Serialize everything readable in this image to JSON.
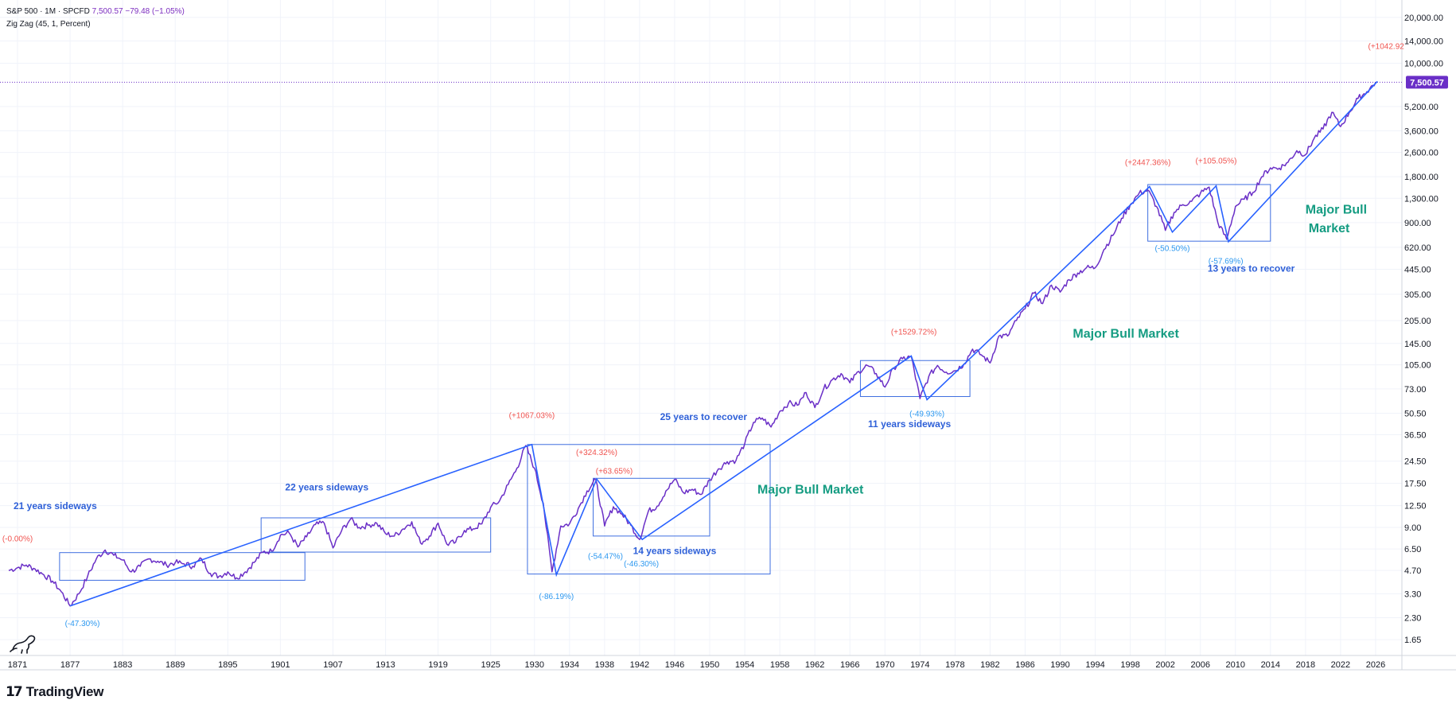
{
  "header": {
    "symbol": "S&P 500 · 1M · SPCFD",
    "last": "7,500.57",
    "change": "−79.48 (−1.05%)",
    "indicator": "Zig Zag (45, 1, Percent)"
  },
  "footer": {
    "brand": "TradingView"
  },
  "colors": {
    "price_line": "#6a2fc7",
    "zigzag": "#2962ff",
    "box": "#3f6fe0",
    "positive": "#f0534f",
    "negative": "#2c98f0",
    "annotation_blue": "#2e60d8",
    "annotation_green": "#159c82",
    "grid": "#f0f3fa",
    "axis_text": "#131722",
    "price_tag_bg": "#6a2fc7"
  },
  "chart_data": {
    "type": "line",
    "title": "S&P 500 · 1M · SPCFD",
    "scale": "log",
    "xlim": [
      1869,
      2029
    ],
    "ylim": [
      1.3,
      26000
    ],
    "grid": true,
    "x_ticks": [
      "1871",
      "1877",
      "1883",
      "1889",
      "1895",
      "1901",
      "1907",
      "1913",
      "1919",
      "1925",
      "1930",
      "1934",
      "1938",
      "1942",
      "1946",
      "1950",
      "1954",
      "1958",
      "1962",
      "1966",
      "1970",
      "1974",
      "1978",
      "1982",
      "1986",
      "1990",
      "1994",
      "1998",
      "2002",
      "2006",
      "2010",
      "2014",
      "2018",
      "2022",
      "2026"
    ],
    "y_ticks": [
      {
        "v": 1.65,
        "label": "1.65"
      },
      {
        "v": 2.3,
        "label": "2.30"
      },
      {
        "v": 3.3,
        "label": "3.30"
      },
      {
        "v": 4.7,
        "label": "4.70"
      },
      {
        "v": 6.5,
        "label": "6.50"
      },
      {
        "v": 9,
        "label": "9.00"
      },
      {
        "v": 12.5,
        "label": "12.50"
      },
      {
        "v": 17.5,
        "label": "17.50"
      },
      {
        "v": 24.5,
        "label": "24.50"
      },
      {
        "v": 36.5,
        "label": "36.50"
      },
      {
        "v": 50.5,
        "label": "50.50"
      },
      {
        "v": 73,
        "label": "73.00"
      },
      {
        "v": 105,
        "label": "105.00"
      },
      {
        "v": 145,
        "label": "145.00"
      },
      {
        "v": 205,
        "label": "205.00"
      },
      {
        "v": 305,
        "label": "305.00"
      },
      {
        "v": 445,
        "label": "445.00"
      },
      {
        "v": 620,
        "label": "620.00"
      },
      {
        "v": 900,
        "label": "900.00"
      },
      {
        "v": 1300,
        "label": "1,300.00"
      },
      {
        "v": 1800,
        "label": "1,800.00"
      },
      {
        "v": 2600,
        "label": "2,600.00"
      },
      {
        "v": 3600,
        "label": "3,600.00"
      },
      {
        "v": 5200,
        "label": "5,200.00"
      },
      {
        "v": 10000,
        "label": "10,000.00"
      },
      {
        "v": 14000,
        "label": "14,000.00"
      },
      {
        "v": 20000,
        "label": "20,000.00"
      }
    ],
    "last_price": {
      "value": 7500.57,
      "label": "7,500.57"
    },
    "series": [
      {
        "points": [
          [
            1870.0,
            4.7
          ],
          [
            1871.0,
            4.9
          ],
          [
            1872.0,
            5.1
          ],
          [
            1873.0,
            4.8
          ],
          [
            1874.0,
            4.4
          ],
          [
            1875.0,
            4.0
          ],
          [
            1876.0,
            3.4
          ],
          [
            1877.0,
            2.75
          ],
          [
            1878.0,
            3.3
          ],
          [
            1879.0,
            4.3
          ],
          [
            1880.0,
            5.6
          ],
          [
            1881.0,
            6.4
          ],
          [
            1882.0,
            5.9
          ],
          [
            1883.0,
            5.5
          ],
          [
            1884.0,
            4.6
          ],
          [
            1885.0,
            5.0
          ],
          [
            1886.0,
            5.6
          ],
          [
            1887.0,
            5.4
          ],
          [
            1888.0,
            5.1
          ],
          [
            1889.0,
            5.3
          ],
          [
            1890.0,
            5.2
          ],
          [
            1891.0,
            5.0
          ],
          [
            1892.0,
            5.6
          ],
          [
            1893.0,
            4.5
          ],
          [
            1894.0,
            4.3
          ],
          [
            1895.0,
            4.6
          ],
          [
            1896.0,
            4.2
          ],
          [
            1897.0,
            4.6
          ],
          [
            1898.0,
            5.3
          ],
          [
            1899.0,
            6.2
          ],
          [
            1900.0,
            6.3
          ],
          [
            1901.0,
            8.0
          ],
          [
            1902.0,
            8.3
          ],
          [
            1903.0,
            6.7
          ],
          [
            1904.0,
            7.8
          ],
          [
            1905.0,
            9.4
          ],
          [
            1906.0,
            9.6
          ],
          [
            1907.0,
            6.6
          ],
          [
            1908.0,
            8.6
          ],
          [
            1909.0,
            10.2
          ],
          [
            1910.0,
            9.0
          ],
          [
            1911.0,
            9.3
          ],
          [
            1912.0,
            9.6
          ],
          [
            1913.0,
            8.2
          ],
          [
            1914.0,
            7.9
          ],
          [
            1915.0,
            8.8
          ],
          [
            1916.0,
            9.8
          ],
          [
            1917.0,
            7.1
          ],
          [
            1918.0,
            7.9
          ],
          [
            1919.0,
            9.6
          ],
          [
            1920.0,
            7.0
          ],
          [
            1921.0,
            7.2
          ],
          [
            1922.0,
            8.6
          ],
          [
            1923.0,
            8.8
          ],
          [
            1924.0,
            9.5
          ],
          [
            1925.0,
            12.2
          ],
          [
            1926.0,
            13.4
          ],
          [
            1927.0,
            17.2
          ],
          [
            1928.0,
            22.0
          ],
          [
            1929.0,
            31.0
          ],
          [
            1930.0,
            22.0
          ],
          [
            1931.0,
            13.0
          ],
          [
            1932.0,
            4.6
          ],
          [
            1933.0,
            9.2
          ],
          [
            1934.0,
            9.5
          ],
          [
            1935.0,
            12.0
          ],
          [
            1936.0,
            15.6
          ],
          [
            1937.0,
            18.5
          ],
          [
            1938.0,
            9.2
          ],
          [
            1939.0,
            12.3
          ],
          [
            1940.0,
            11.0
          ],
          [
            1941.0,
            9.3
          ],
          [
            1942.0,
            7.5
          ],
          [
            1943.0,
            11.5
          ],
          [
            1944.0,
            12.4
          ],
          [
            1945.0,
            15.6
          ],
          [
            1946.0,
            18.6
          ],
          [
            1947.0,
            15.2
          ],
          [
            1948.0,
            16.0
          ],
          [
            1949.0,
            14.8
          ],
          [
            1950.0,
            18.5
          ],
          [
            1951.0,
            21.8
          ],
          [
            1952.0,
            24.3
          ],
          [
            1953.0,
            24.8
          ],
          [
            1954.0,
            32.0
          ],
          [
            1955.0,
            44.0
          ],
          [
            1956.0,
            47.0
          ],
          [
            1957.0,
            41.0
          ],
          [
            1958.0,
            52.0
          ],
          [
            1959.0,
            59.0
          ],
          [
            1960.0,
            57.0
          ],
          [
            1961.0,
            69.0
          ],
          [
            1962.0,
            55.0
          ],
          [
            1963.0,
            73.0
          ],
          [
            1964.0,
            84.0
          ],
          [
            1965.0,
            92.0
          ],
          [
            1966.0,
            80.0
          ],
          [
            1967.0,
            95.0
          ],
          [
            1968.0,
            104.0
          ],
          [
            1969.0,
            92.0
          ],
          [
            1970.0,
            75.0
          ],
          [
            1971.0,
            100.0
          ],
          [
            1972.0,
            115.0
          ],
          [
            1973.0,
            119.0
          ],
          [
            1974.0,
            63.0
          ],
          [
            1975.0,
            88.0
          ],
          [
            1976.0,
            104.0
          ],
          [
            1977.0,
            94.0
          ],
          [
            1978.0,
            96.0
          ],
          [
            1979.0,
            106.0
          ],
          [
            1980.0,
            133.0
          ],
          [
            1981.0,
            122.0
          ],
          [
            1982.0,
            108.0
          ],
          [
            1983.0,
            162.0
          ],
          [
            1984.0,
            162.0
          ],
          [
            1985.0,
            205.0
          ],
          [
            1986.0,
            245.0
          ],
          [
            1987.0,
            310.0
          ],
          [
            1988.0,
            265.0
          ],
          [
            1989.0,
            350.0
          ],
          [
            1990.0,
            315.0
          ],
          [
            1991.0,
            380.0
          ],
          [
            1992.0,
            420.0
          ],
          [
            1993.0,
            455.0
          ],
          [
            1994.0,
            455.0
          ],
          [
            1995.0,
            600.0
          ],
          [
            1996.0,
            740.0
          ],
          [
            1997.0,
            960.0
          ],
          [
            1998.0,
            1180.0
          ],
          [
            1999.0,
            1400.0
          ],
          [
            2000.0,
            1470.0
          ],
          [
            2001.0,
            1150.0
          ],
          [
            2002.0,
            800.0
          ],
          [
            2003.0,
            1050.0
          ],
          [
            2004.0,
            1180.0
          ],
          [
            2005.0,
            1240.0
          ],
          [
            2006.0,
            1400.0
          ],
          [
            2007.0,
            1540.0
          ],
          [
            2008.0,
            900.0
          ],
          [
            2009.0,
            700.0
          ],
          [
            2010.0,
            1150.0
          ],
          [
            2011.0,
            1280.0
          ],
          [
            2012.0,
            1420.0
          ],
          [
            2013.0,
            1800.0
          ],
          [
            2014.0,
            2060.0
          ],
          [
            2015.0,
            2050.0
          ],
          [
            2016.0,
            2240.0
          ],
          [
            2017.0,
            2670.0
          ],
          [
            2018.0,
            2510.0
          ],
          [
            2019.0,
            3230.0
          ],
          [
            2020.0,
            3700.0
          ],
          [
            2021.0,
            4760.0
          ],
          [
            2022.0,
            3840.0
          ],
          [
            2023.0,
            4760.0
          ],
          [
            2024.0,
            5880.0
          ],
          [
            2025.0,
            6500.0
          ],
          [
            2026.0,
            7500.57
          ]
        ]
      }
    ],
    "zigzag": [
      [
        1877.0,
        2.75
      ],
      [
        1929.7,
        31.5
      ],
      [
        1932.5,
        4.4
      ],
      [
        1937.1,
        18.7
      ],
      [
        1942.3,
        7.5
      ],
      [
        1973.0,
        120.0
      ],
      [
        1974.8,
        62.0
      ],
      [
        2000.2,
        1550.0
      ],
      [
        2002.8,
        780.0
      ],
      [
        2007.8,
        1570.0
      ],
      [
        2009.2,
        675.0
      ],
      [
        2026.2,
        7600.0
      ]
    ],
    "boxes": [
      {
        "x": [
          1875.8,
          1903.8
        ],
        "y": [
          4.05,
          6.15
        ]
      },
      {
        "x": [
          1898.8,
          1925.0
        ],
        "y": [
          6.2,
          10.4
        ]
      },
      {
        "x": [
          1929.2,
          1956.9
        ],
        "y": [
          4.45,
          31.5
        ]
      },
      {
        "x": [
          1936.7,
          1950.0
        ],
        "y": [
          7.9,
          18.9
        ]
      },
      {
        "x": [
          1967.2,
          1979.7
        ],
        "y": [
          65.0,
          112.0
        ]
      },
      {
        "x": [
          2000.0,
          2014.0
        ],
        "y": [
          680.0,
          1600.0
        ]
      }
    ],
    "annotations": [
      {
        "text": "(-0.00%)",
        "x": 1871.0,
        "y": 7.3,
        "kind": "positive"
      },
      {
        "text": "(-47.30%)",
        "x": 1878.4,
        "y": 2.03,
        "kind": "negative"
      },
      {
        "text": "(+1067.03%)",
        "x": 1929.7,
        "y": 47.0,
        "kind": "positive"
      },
      {
        "text": "(-86.19%)",
        "x": 1932.5,
        "y": 3.05,
        "kind": "negative"
      },
      {
        "text": "(+324.32%)",
        "x": 1937.1,
        "y": 26.8,
        "kind": "positive"
      },
      {
        "text": "(+63.65%)",
        "x": 1939.1,
        "y": 20.2,
        "kind": "positive"
      },
      {
        "text": "(-54.47%)",
        "x": 1938.1,
        "y": 5.6,
        "kind": "negative"
      },
      {
        "text": "(-46.30%)",
        "x": 1942.2,
        "y": 5.0,
        "kind": "negative"
      },
      {
        "text": "(+1529.72%)",
        "x": 1973.3,
        "y": 166.0,
        "kind": "positive"
      },
      {
        "text": "(-49.93%)",
        "x": 1974.8,
        "y": 48.0,
        "kind": "negative"
      },
      {
        "text": "(+2447.36%)",
        "x": 2000.0,
        "y": 2150.0,
        "kind": "positive"
      },
      {
        "text": "(+105.05%)",
        "x": 2007.8,
        "y": 2200.0,
        "kind": "positive"
      },
      {
        "text": "(-50.50%)",
        "x": 2002.8,
        "y": 585.0,
        "kind": "negative"
      },
      {
        "text": "(-57.69%)",
        "x": 2008.9,
        "y": 485.0,
        "kind": "negative"
      },
      {
        "text": "(+1042.92",
        "x": 2027.2,
        "y": 12400.0,
        "kind": "positive"
      },
      {
        "text": "21 years sideways",
        "x": 1875.3,
        "y": 11.9,
        "kind": "blue"
      },
      {
        "text": "22 years sideways",
        "x": 1906.3,
        "y": 15.7,
        "kind": "blue"
      },
      {
        "text": "25 years to recover",
        "x": 1949.3,
        "y": 45.5,
        "kind": "blue"
      },
      {
        "text": "14 years sideways",
        "x": 1946.0,
        "y": 6.0,
        "kind": "blue"
      },
      {
        "text": "11 years sideways",
        "x": 1972.8,
        "y": 41.0,
        "kind": "blue"
      },
      {
        "text": "13 years to recover",
        "x": 2011.8,
        "y": 430.0,
        "kind": "blue"
      },
      {
        "text": "Major Bull Market",
        "x": 1961.5,
        "y": 15.0,
        "kind": "green"
      },
      {
        "text": "Major Bull Market",
        "x": 1997.5,
        "y": 158.0,
        "kind": "green"
      },
      {
        "text": "Major Bull",
        "x": 2021.5,
        "y": 1030.0,
        "kind": "green"
      },
      {
        "text": "Market",
        "x": 2020.7,
        "y": 780.0,
        "kind": "green"
      }
    ]
  }
}
